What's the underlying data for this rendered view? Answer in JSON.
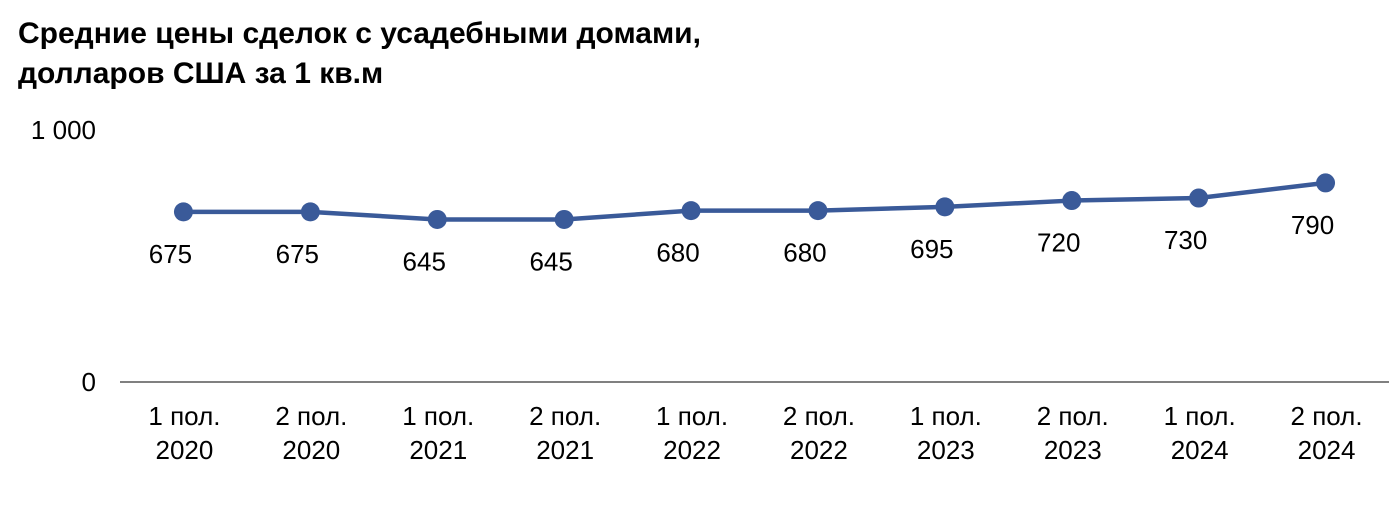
{
  "chart_data": {
    "type": "line",
    "title": [
      "Средние цены сделок с усадебными домами,",
      "долларов США за 1 кв.м"
    ],
    "xlabel": "",
    "ylabel": "",
    "ylim": [
      0,
      1000
    ],
    "yticks": [
      "0",
      "1 000"
    ],
    "grid": false,
    "legend": "none",
    "categories": [
      [
        "1 пол.",
        "2020"
      ],
      [
        "2 пол.",
        "2020"
      ],
      [
        "1 пол.",
        "2021"
      ],
      [
        "2 пол.",
        "2021"
      ],
      [
        "1 пол.",
        "2022"
      ],
      [
        "2 пол.",
        "2022"
      ],
      [
        "1 пол.",
        "2023"
      ],
      [
        "2 пол.",
        "2023"
      ],
      [
        "1 пол.",
        "2024"
      ],
      [
        "2 пол.",
        "2024"
      ]
    ],
    "series": [
      {
        "values": [
          675,
          675,
          645,
          645,
          680,
          680,
          695,
          720,
          730,
          790
        ],
        "labels": [
          "675",
          "675",
          "645",
          "645",
          "680",
          "680",
          "695",
          "720",
          "730",
          "790"
        ],
        "color": "#3a5a99"
      }
    ],
    "axis_color": "#808080"
  }
}
